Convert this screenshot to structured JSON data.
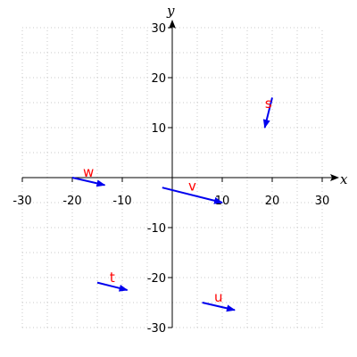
{
  "chart_data": {
    "type": "vector-plot",
    "title": "",
    "xlabel": "x",
    "ylabel": "y",
    "xlim": [
      -30,
      30
    ],
    "ylim": [
      -30,
      30
    ],
    "xticks": [
      -30,
      -20,
      -10,
      10,
      20,
      30
    ],
    "yticks": [
      -30,
      -20,
      -10,
      10,
      20,
      30
    ],
    "grid": true,
    "grid_step": 5,
    "vector_color": "#0000ee",
    "label_color": "#ff0000",
    "vectors": [
      {
        "label": "s",
        "x1": 20,
        "y1": 16,
        "x2": 18.5,
        "y2": 10
      },
      {
        "label": "v",
        "x1": -2,
        "y1": -2,
        "x2": 10,
        "y2": -5
      },
      {
        "label": "w",
        "x1": -20,
        "y1": 0,
        "x2": -13.5,
        "y2": -1.5
      },
      {
        "label": "t",
        "x1": -15,
        "y1": -21,
        "x2": -9,
        "y2": -22.5
      },
      {
        "label": "u",
        "x1": 6,
        "y1": -25,
        "x2": 12.5,
        "y2": -26.5
      }
    ]
  }
}
